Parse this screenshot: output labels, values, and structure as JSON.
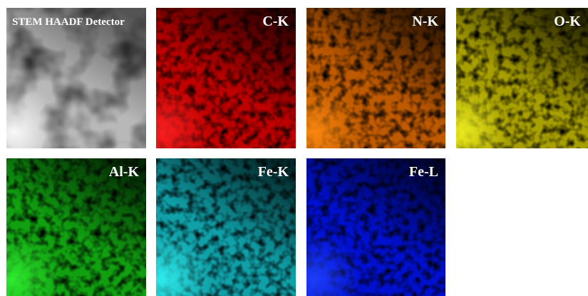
{
  "panels": [
    {
      "label": "STEM HAADF Detector"
    },
    {
      "label": "C-K"
    },
    {
      "label": "N-K"
    },
    {
      "label": "O-K"
    },
    {
      "label": "Al-K"
    },
    {
      "label": "Fe-K"
    },
    {
      "label": "Fe-L"
    }
  ]
}
